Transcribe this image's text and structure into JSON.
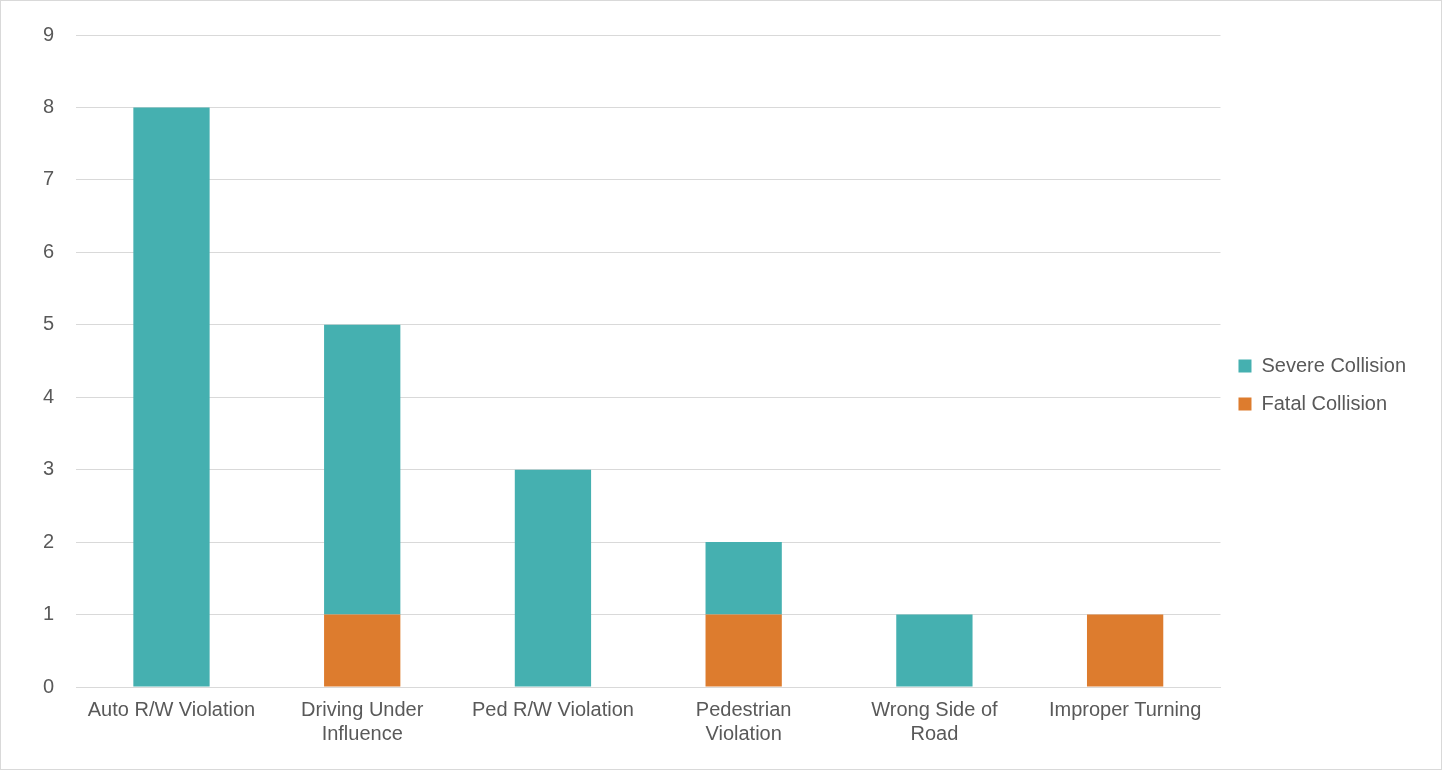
{
  "chart_data": {
    "type": "bar",
    "stacked": true,
    "categories": [
      "Auto R/W Violation",
      "Driving Under Influence",
      "Ped R/W Violation",
      "Pedestrian Violation",
      "Wrong Side of Road",
      "Improper Turning"
    ],
    "series": [
      {
        "name": "Fatal Collision",
        "color": "#dd7c2e",
        "values": [
          0,
          1,
          0,
          1,
          0,
          1
        ]
      },
      {
        "name": "Severe Collision",
        "color": "#45b0b0",
        "values": [
          8,
          4,
          3,
          1,
          1,
          0
        ]
      }
    ],
    "ylim": [
      0,
      9
    ],
    "yticks": [
      0,
      1,
      2,
      3,
      4,
      5,
      6,
      7,
      8,
      9
    ],
    "grid": "y",
    "legend": "right"
  }
}
